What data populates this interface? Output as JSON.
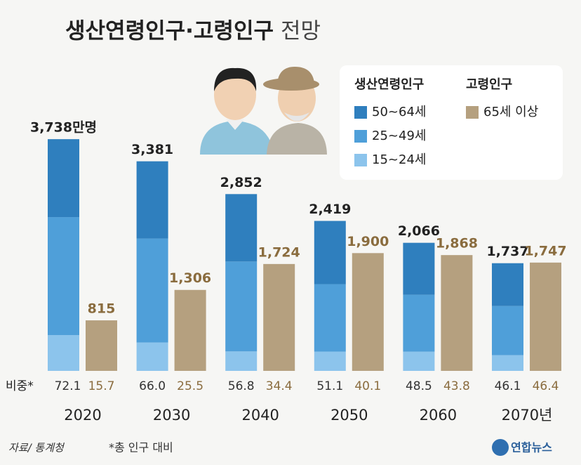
{
  "chart_data": {
    "type": "stacked_bar",
    "title": "생산연령인구·고령인구",
    "title_2": "전망",
    "categories": [
      "2020",
      "2030",
      "2040",
      "2050",
      "2060",
      "2070년"
    ],
    "legend_groups": [
      "생산연령인구",
      "고령인구"
    ],
    "series": [
      {
        "name": "50~64세",
        "color": "#2f7fbe",
        "values": [
          1257,
          1246,
          1088,
          1020,
          838,
          691
        ]
      },
      {
        "name": "25~49세",
        "color": "#4f9fd9",
        "values": [
          1903,
          1677,
          1450,
          1088,
          918,
          793
        ]
      },
      {
        "name": "15~24세",
        "color": "#8cc4ec",
        "values": [
          578,
          458,
          314,
          311,
          310,
          253
        ]
      }
    ],
    "totals": {
      "values": [
        3738,
        3381,
        2852,
        2419,
        2066,
        1737
      ],
      "value_labels": [
        "3,738만명",
        "3,381",
        "2,852",
        "2,419",
        "2,066",
        "1,737"
      ]
    },
    "elderly": {
      "name": "65세 이상",
      "color": "#b5a07f",
      "label_color": "#8a6c3e",
      "values": [
        815,
        1306,
        1724,
        1900,
        1868,
        1747
      ],
      "value_labels": [
        "815",
        "1,306",
        "1,724",
        "1,900",
        "1,868",
        "1,747"
      ]
    },
    "share_label": "비중*",
    "share_working": {
      "values": [
        72.1,
        66.0,
        56.8,
        51.1,
        48.5,
        46.1
      ],
      "value_labels": [
        "72.1",
        "66.0",
        "56.8",
        "51.1",
        "48.5",
        "46.1"
      ]
    },
    "share_elderly": {
      "values": [
        15.7,
        25.5,
        34.4,
        40.1,
        43.8,
        46.4
      ],
      "value_labels": [
        "15.7",
        "25.5",
        "34.4",
        "40.1",
        "43.8",
        "46.4"
      ]
    },
    "ylim": [
      0,
      4000
    ],
    "source": "자료/ 통계청",
    "note": "*총 인구 대비",
    "credit": "연합뉴스"
  }
}
